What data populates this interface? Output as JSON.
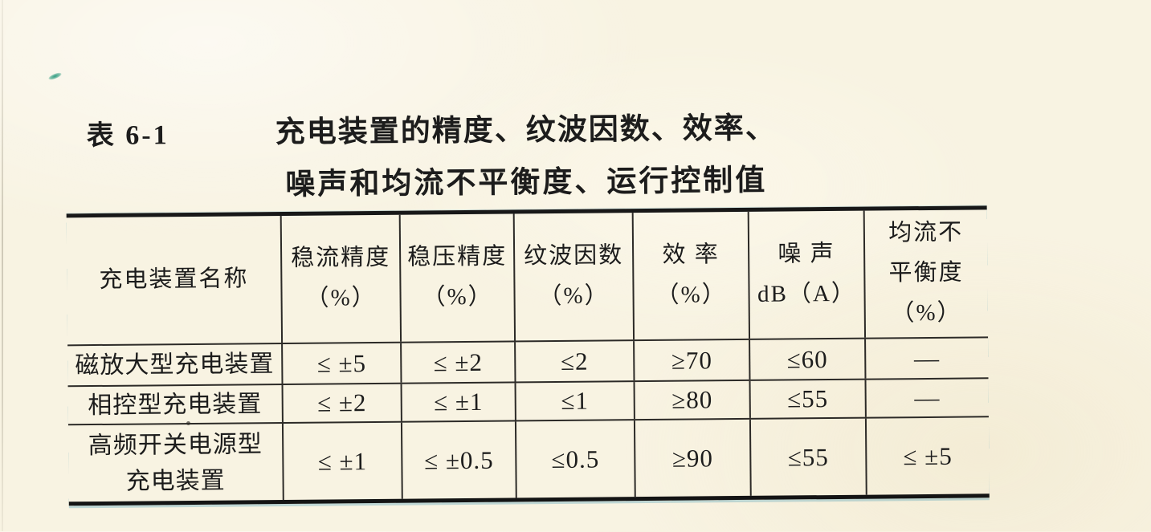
{
  "page": {
    "table_label": "表 6-1",
    "title_line1": "充电装置的精度、纹波因数、效率、",
    "title_line2": "噪声和均流不平衡度、运行控制值"
  },
  "table": {
    "header": [
      "充电装置名称",
      "稳流精度\n（%）",
      "稳压精度\n（%）",
      "纹波因数\n（%）",
      "效 率\n（%）",
      "噪 声\ndB（A）",
      "均流不\n平衡度\n（%）"
    ],
    "rows": [
      {
        "name": "磁放大型充电装置",
        "values": [
          "≤ ±5",
          "≤ ±2",
          "≤2",
          "≥70",
          "≤60",
          "—"
        ]
      },
      {
        "name": "相控型充电装置",
        "values": [
          "≤ ±2",
          "≤ ±1",
          "≤1",
          "≥80",
          "≤55",
          "—"
        ]
      },
      {
        "name": "高频开关电源型\n充电装置",
        "values": [
          "≤ ±1",
          "≤ ±0.5",
          "≤0.5",
          "≥90",
          "≤55",
          "≤ ±5"
        ]
      }
    ]
  },
  "artifact_colors": {
    "paper": "#f8f3e2",
    "ink": "#1c1c1c",
    "rule_line": "#2c2a27",
    "green_speck": "#2f9c80",
    "scan_fringe_teal": "#3796b4"
  }
}
